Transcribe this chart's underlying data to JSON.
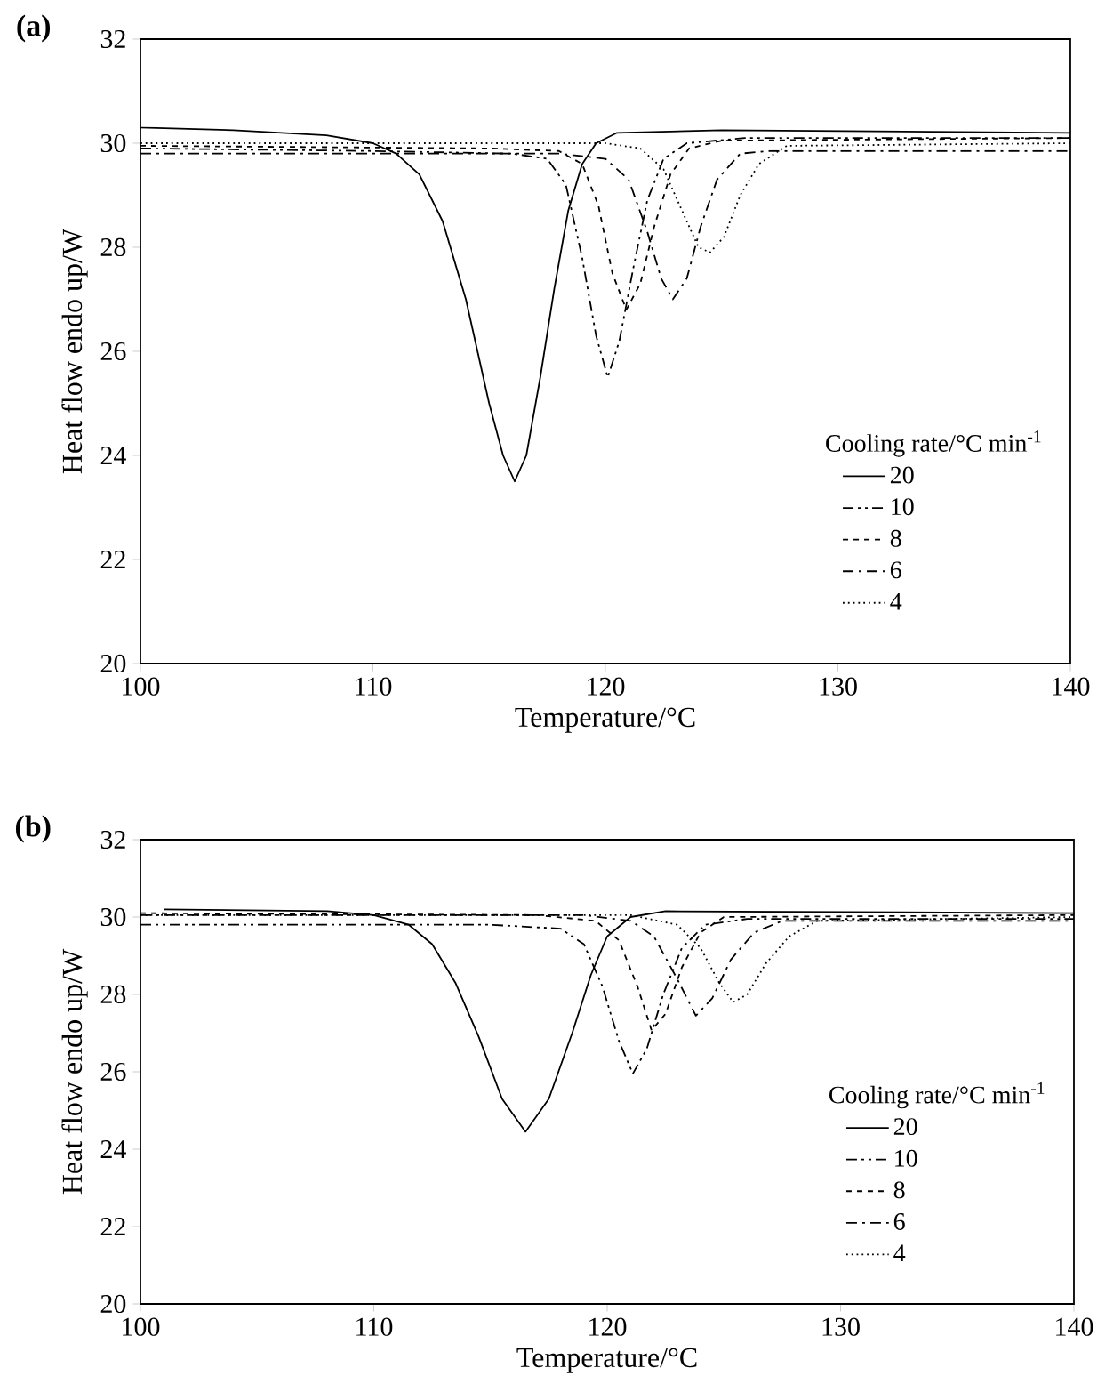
{
  "chart_data": [
    {
      "type": "line",
      "title": "(a)",
      "xlabel": "Temperature/°C",
      "ylabel": "Heat flow endo up/W",
      "legend_title": "Cooling rate/°C min$^{-1}$",
      "legend": "bottom right",
      "xlim": [
        100,
        140
      ],
      "ylim": [
        20,
        32
      ],
      "xticks": [
        100,
        110,
        120,
        130,
        140
      ],
      "yticks": [
        20,
        22,
        24,
        26,
        28,
        30,
        32
      ],
      "series": [
        {
          "name": "20",
          "color": "#000000",
          "line_style": "solid",
          "x": [
            100,
            104,
            108,
            110,
            111,
            112,
            113,
            114,
            115,
            115.6,
            116.1,
            116.6,
            117.2,
            117.8,
            118.4,
            119,
            119.6,
            120.5,
            125,
            140
          ],
          "values": [
            30.3,
            30.25,
            30.15,
            30.0,
            29.8,
            29.4,
            28.5,
            27.0,
            25.0,
            24.0,
            23.5,
            24.0,
            25.5,
            27.2,
            28.7,
            29.6,
            30.0,
            30.2,
            30.25,
            30.2
          ]
        },
        {
          "name": "10",
          "color": "#000000",
          "line_style": "dashdotdotted",
          "x": [
            100,
            110,
            116,
            117.5,
            118.3,
            119,
            119.6,
            120.1,
            120.6,
            121.2,
            121.8,
            122.5,
            123.5,
            126,
            140
          ],
          "values": [
            29.9,
            29.85,
            29.8,
            29.7,
            29.2,
            27.8,
            26.3,
            25.5,
            26.2,
            27.6,
            28.9,
            29.7,
            30.0,
            30.1,
            30.1
          ]
        },
        {
          "name": "8",
          "color": "#000000",
          "line_style": "dashed",
          "x": [
            100,
            115,
            118,
            119,
            119.7,
            120.3,
            120.9,
            121.5,
            122.1,
            122.8,
            123.6,
            125,
            140
          ],
          "values": [
            29.95,
            29.9,
            29.85,
            29.6,
            28.8,
            27.5,
            26.8,
            27.3,
            28.4,
            29.4,
            29.9,
            30.05,
            30.1
          ]
        },
        {
          "name": "6",
          "color": "#000000",
          "line_style": "dashdotted",
          "x": [
            100,
            118,
            120,
            121,
            121.8,
            122.4,
            122.9,
            123.5,
            124.1,
            124.8,
            125.8,
            127,
            140
          ],
          "values": [
            29.8,
            29.8,
            29.7,
            29.3,
            28.3,
            27.4,
            27.0,
            27.4,
            28.4,
            29.3,
            29.8,
            29.85,
            29.85
          ]
        },
        {
          "name": "4",
          "color": "#000000",
          "line_style": "dotted",
          "x": [
            100,
            120,
            121.5,
            122.5,
            123.3,
            124.0,
            124.5,
            125.1,
            125.8,
            126.6,
            127.8,
            140
          ],
          "values": [
            30.0,
            30.0,
            29.9,
            29.5,
            28.7,
            28.0,
            27.9,
            28.2,
            29.0,
            29.6,
            29.95,
            30.0
          ]
        }
      ]
    },
    {
      "type": "line",
      "title": "(b)",
      "xlabel": "Temperature/°C",
      "ylabel": "Heat flow endo up/W",
      "legend_title": "Cooling rate/°C min$^{-1}$",
      "legend": "bottom right",
      "xlim": [
        100,
        140
      ],
      "ylim": [
        20,
        32
      ],
      "xticks": [
        100,
        110,
        120,
        130,
        140
      ],
      "yticks": [
        20,
        22,
        24,
        26,
        28,
        30,
        32
      ],
      "series": [
        {
          "name": "20",
          "color": "#000000",
          "line_style": "solid",
          "x": [
            101,
            108,
            110,
            111.5,
            112.5,
            113.5,
            114.5,
            115.5,
            116.5,
            117.5,
            118.5,
            119.3,
            120,
            121,
            122.5,
            140
          ],
          "values": [
            30.2,
            30.15,
            30.05,
            29.8,
            29.3,
            28.3,
            26.9,
            25.3,
            24.45,
            25.3,
            27.0,
            28.5,
            29.5,
            30.0,
            30.15,
            30.1
          ]
        },
        {
          "name": "10",
          "color": "#000000",
          "line_style": "dashdotdotted",
          "x": [
            100,
            115,
            118,
            119,
            119.8,
            120.5,
            121.1,
            121.7,
            122.4,
            123.2,
            124.2,
            126,
            140
          ],
          "values": [
            29.8,
            29.8,
            29.7,
            29.3,
            28.2,
            26.8,
            25.95,
            26.6,
            28.0,
            29.2,
            29.8,
            29.95,
            29.95
          ]
        },
        {
          "name": "8",
          "color": "#000000",
          "line_style": "dashed",
          "x": [
            100,
            117,
            119.5,
            120.5,
            121.3,
            121.9,
            122.5,
            123.2,
            124,
            125,
            140
          ],
          "values": [
            30.1,
            30.05,
            29.9,
            29.4,
            28.2,
            27.07,
            27.5,
            28.7,
            29.6,
            30.0,
            30.05
          ]
        },
        {
          "name": "6",
          "color": "#000000",
          "line_style": "dashdotted",
          "x": [
            100,
            119,
            121,
            122,
            123,
            123.8,
            124.5,
            125.3,
            126.3,
            127.5,
            140
          ],
          "values": [
            30.05,
            30.05,
            29.9,
            29.5,
            28.4,
            27.45,
            27.9,
            28.9,
            29.6,
            29.9,
            29.9
          ]
        },
        {
          "name": "4",
          "color": "#000000",
          "line_style": "dotted",
          "x": [
            100,
            121,
            123,
            124,
            124.8,
            125.4,
            126,
            126.8,
            127.8,
            129,
            140
          ],
          "values": [
            30.05,
            30.05,
            29.8,
            29.2,
            28.3,
            27.8,
            28.0,
            28.8,
            29.5,
            29.9,
            30.0
          ]
        }
      ]
    }
  ]
}
